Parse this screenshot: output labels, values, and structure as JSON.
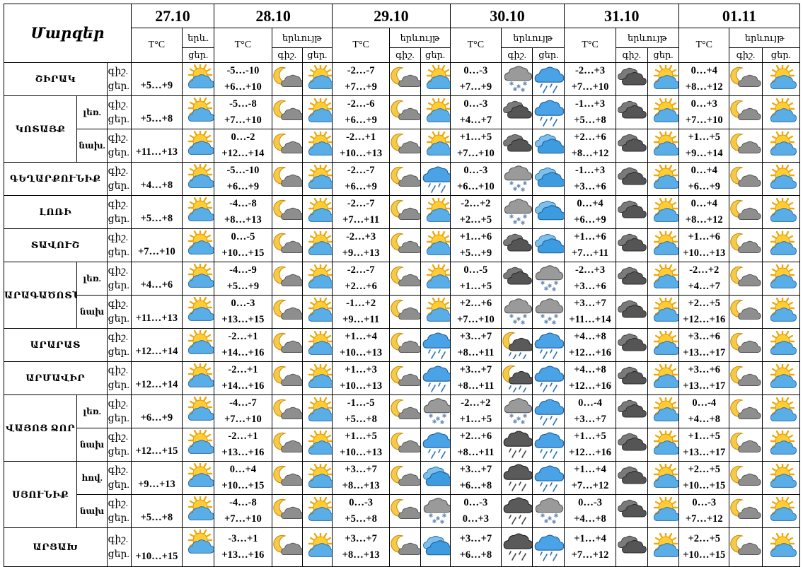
{
  "header": {
    "title": "Մարզեր",
    "temp_label": "T°C",
    "phen_label": "երևույթ",
    "phen_label_short": "երև.",
    "night_label": "գիշ.",
    "day_label": "ցեր."
  },
  "dates": [
    "27.10",
    "28.10",
    "29.10",
    "30.10",
    "31.10",
    "01.11"
  ],
  "regions": [
    {
      "name": "ՇԻՐԱԿ",
      "part": "",
      "span": 1,
      "temps": [
        {
          "n": "",
          "d": "+5…+9"
        },
        {
          "n": "-5…-10",
          "d": "+6…+10"
        },
        {
          "n": "-2…-7",
          "d": "+7…+9"
        },
        {
          "n": "0…-3",
          "d": "+7…+9"
        },
        {
          "n": "-2…+3",
          "d": "+7…+10"
        },
        {
          "n": "0…+4",
          "d": "+8…+12"
        }
      ],
      "icons": [
        "sun-cloud",
        "moon-cloud",
        "sun-cloud",
        "moon-cloud",
        "sun-cloud",
        "snow-cloud",
        "rain-cloud",
        "dark-cloud",
        "sun-cloud",
        "moon-cloud",
        "sun-cloud"
      ]
    },
    {
      "name": "ԿՈՏԱՅՔ",
      "part": "լեռ.",
      "span": 2,
      "temps": [
        {
          "n": "",
          "d": "+5…+8"
        },
        {
          "n": "-5…-8",
          "d": "+7…+10"
        },
        {
          "n": "-2…-6",
          "d": "+6…+9"
        },
        {
          "n": "0…-3",
          "d": "+4…+7"
        },
        {
          "n": "-1…+3",
          "d": "+5…+8"
        },
        {
          "n": "0…+3",
          "d": "+7…+10"
        }
      ],
      "icons": [
        "sun-cloud",
        "moon-cloud",
        "sun-cloud",
        "moon-cloud",
        "sun-cloud",
        "dark-cloud",
        "rain-cloud",
        "dark-cloud",
        "sun-cloud",
        "moon-cloud",
        "sun-cloud"
      ]
    },
    {
      "name": "",
      "part": "նախ.",
      "span": 0,
      "temps": [
        {
          "n": "",
          "d": "+11…+13"
        },
        {
          "n": "0…-2",
          "d": "+12…+14"
        },
        {
          "n": "-2…+1",
          "d": "+10…+13"
        },
        {
          "n": "+1…+5",
          "d": "+7…+10"
        },
        {
          "n": "+2…+6",
          "d": "+8…+12"
        },
        {
          "n": "+1…+5",
          "d": "+9…+14"
        }
      ],
      "icons": [
        "sun-cloud",
        "moon-cloud",
        "sun-cloud",
        "moon-cloud",
        "sun-cloud",
        "dark-cloud",
        "blue-cloud",
        "dark-cloud",
        "sun-cloud",
        "moon-cloud",
        "sun-cloud"
      ]
    },
    {
      "name": "ԳԵՂԱՐՔՈՒՆԻՔ",
      "part": "",
      "span": 1,
      "temps": [
        {
          "n": "",
          "d": "+4…+8"
        },
        {
          "n": "-5…-10",
          "d": "+6…+9"
        },
        {
          "n": "-2…-7",
          "d": "+6…+9"
        },
        {
          "n": "0…-3",
          "d": "+6…+10"
        },
        {
          "n": "-1…+3",
          "d": "+3…+6"
        },
        {
          "n": "0…+4",
          "d": "+6…+9"
        }
      ],
      "icons": [
        "sun-cloud",
        "moon-cloud",
        "sun-cloud",
        "moon-cloud",
        "rain-cloud",
        "snow-cloud",
        "blue-cloud",
        "dark-cloud",
        "sun-cloud",
        "moon-cloud",
        "sun-cloud"
      ]
    },
    {
      "name": "ԼՈՌԻ",
      "part": "",
      "span": 1,
      "temps": [
        {
          "n": "",
          "d": "+5…+8"
        },
        {
          "n": "-4…-8",
          "d": "+8…+13"
        },
        {
          "n": "-2…-7",
          "d": "+7…+11"
        },
        {
          "n": "-2…+2",
          "d": "+2…+5"
        },
        {
          "n": "0…+4",
          "d": "+6…+9"
        },
        {
          "n": "0…+4",
          "d": "+8…+12"
        }
      ],
      "icons": [
        "sun-cloud",
        "moon-cloud",
        "sun-cloud",
        "moon-cloud",
        "sun-cloud",
        "snow-cloud",
        "blue-cloud",
        "dark-cloud",
        "sun-cloud",
        "moon-cloud",
        "sun-cloud"
      ]
    },
    {
      "name": "ՏԱՎՈՒՇ",
      "part": "",
      "span": 1,
      "temps": [
        {
          "n": "",
          "d": "+7…+10"
        },
        {
          "n": "0…-5",
          "d": "+10…+15"
        },
        {
          "n": "-2…+3",
          "d": "+9…+13"
        },
        {
          "n": "+1…+6",
          "d": "+5…+9"
        },
        {
          "n": "+1…+6",
          "d": "+7…+11"
        },
        {
          "n": "+1…+6",
          "d": "+10…+13"
        }
      ],
      "icons": [
        "sun-cloud",
        "moon-cloud",
        "sun-cloud",
        "moon-cloud",
        "sun-cloud",
        "dark-cloud",
        "blue-cloud",
        "dark-cloud",
        "sun-cloud",
        "moon-cloud",
        "sun-cloud"
      ]
    },
    {
      "name": "ԱՐԱԳԱԾՈՏՆ",
      "part": "լեռ.",
      "span": 2,
      "temps": [
        {
          "n": "",
          "d": "+4…+6"
        },
        {
          "n": "-4…-9",
          "d": "+5…+9"
        },
        {
          "n": "-2…-7",
          "d": "+2…+6"
        },
        {
          "n": "0…-5",
          "d": "+1…+5"
        },
        {
          "n": "-2…+3",
          "d": "+3…+6"
        },
        {
          "n": "-2…+2",
          "d": "+4…+7"
        }
      ],
      "icons": [
        "sun-cloud",
        "moon-cloud",
        "sun-cloud",
        "moon-cloud",
        "sun-cloud",
        "dark-cloud",
        "snow-cloud",
        "dark-cloud",
        "sun-cloud",
        "moon-cloud",
        "sun-cloud"
      ]
    },
    {
      "name": "",
      "part": "նախ",
      "span": 0,
      "temps": [
        {
          "n": "",
          "d": "+11…+13"
        },
        {
          "n": "0…-3",
          "d": "+13…+15"
        },
        {
          "n": "-1…+2",
          "d": "+9…+11"
        },
        {
          "n": "+2…+6",
          "d": "+7…+10"
        },
        {
          "n": "+3…+7",
          "d": "+11…+14"
        },
        {
          "n": "+2…+5",
          "d": "+12…+16"
        }
      ],
      "icons": [
        "sun-cloud",
        "moon-cloud",
        "sun-cloud",
        "moon-cloud",
        "sun-cloud",
        "snow-cloud",
        "snow-cloud",
        "dark-cloud",
        "sun-cloud",
        "moon-cloud",
        "sun-cloud"
      ]
    },
    {
      "name": "ԱՐԱՐԱՏ",
      "part": "",
      "span": 1,
      "temps": [
        {
          "n": "",
          "d": "+12…+14"
        },
        {
          "n": "-2…+1",
          "d": "+14…+16"
        },
        {
          "n": "+1…+4",
          "d": "+10…+13"
        },
        {
          "n": "+3…+7",
          "d": "+8…+11"
        },
        {
          "n": "+4…+8",
          "d": "+12…+16"
        },
        {
          "n": "+3…+6",
          "d": "+13…+17"
        }
      ],
      "icons": [
        "sun-cloud",
        "moon-cloud",
        "sun-cloud",
        "moon-cloud",
        "rain-cloud",
        "moon-rain",
        "rain-cloud",
        "dark-cloud",
        "sun-cloud",
        "moon-cloud",
        "sun-cloud"
      ]
    },
    {
      "name": "ԱՐՄԱՎԻՐ",
      "part": "",
      "span": 1,
      "temps": [
        {
          "n": "",
          "d": "+12…+14"
        },
        {
          "n": "-2…+1",
          "d": "+14…+16"
        },
        {
          "n": "+1…+3",
          "d": "+10…+13"
        },
        {
          "n": "+3…+7",
          "d": "+8…+11"
        },
        {
          "n": "+4…+8",
          "d": "+12…+16"
        },
        {
          "n": "+3…+6",
          "d": "+13…+17"
        }
      ],
      "icons": [
        "sun-cloud",
        "moon-cloud",
        "sun-cloud",
        "moon-cloud",
        "rain-cloud",
        "moon-rain",
        "rain-cloud",
        "dark-cloud",
        "sun-cloud",
        "moon-cloud",
        "sun-cloud"
      ]
    },
    {
      "name": "ՎԱՅՈՑ ՁՈՐ",
      "part": "լեռ.",
      "span": 2,
      "temps": [
        {
          "n": "",
          "d": "+6…+9"
        },
        {
          "n": "-4…-7",
          "d": "+7…+10"
        },
        {
          "n": "-1…-5",
          "d": "+5…+8"
        },
        {
          "n": "-2…+2",
          "d": "+1…+5"
        },
        {
          "n": "0…-4",
          "d": "+3…+7"
        },
        {
          "n": "0…-4",
          "d": "+4…+8"
        }
      ],
      "icons": [
        "sun-cloud",
        "moon-cloud",
        "sun-cloud",
        "moon-cloud",
        "snow-cloud",
        "snow-cloud",
        "rain-cloud",
        "dark-cloud",
        "sun-cloud",
        "moon-cloud",
        "sun-cloud"
      ]
    },
    {
      "name": "",
      "part": "նախ",
      "span": 0,
      "temps": [
        {
          "n": "",
          "d": "+12…+15"
        },
        {
          "n": "-2…+1",
          "d": "+13…+16"
        },
        {
          "n": "+1…+5",
          "d": "+10…+13"
        },
        {
          "n": "+2…+6",
          "d": "+8…+11"
        },
        {
          "n": "+1…+5",
          "d": "+12…+16"
        },
        {
          "n": "+1…+5",
          "d": "+13…+17"
        }
      ],
      "icons": [
        "sun-cloud",
        "moon-cloud",
        "sun-cloud",
        "moon-cloud",
        "rain-cloud",
        "dark-rain",
        "rain-cloud",
        "dark-cloud",
        "sun-cloud",
        "moon-cloud",
        "sun-cloud"
      ]
    },
    {
      "name": "ՍՅՈՒՆԻՔ",
      "part": "հով.",
      "span": 2,
      "temps": [
        {
          "n": "",
          "d": "+9…+13"
        },
        {
          "n": "0…+4",
          "d": "+10…+15"
        },
        {
          "n": "+3…+7",
          "d": "+8…+13"
        },
        {
          "n": "+3…+7",
          "d": "+6…+8"
        },
        {
          "n": "+1…+4",
          "d": "+7…+12"
        },
        {
          "n": "+2…+5",
          "d": "+10…+15"
        }
      ],
      "icons": [
        "sun-cloud",
        "moon-cloud",
        "sun-cloud",
        "moon-cloud",
        "blue-cloud",
        "dark-rain",
        "rain-cloud",
        "dark-cloud",
        "sun-cloud",
        "moon-cloud",
        "sun-cloud"
      ]
    },
    {
      "name": "",
      "part": "նախ",
      "span": 0,
      "temps": [
        {
          "n": "",
          "d": "+5…+8"
        },
        {
          "n": "-4…-8",
          "d": "+7…+10"
        },
        {
          "n": "0…-3",
          "d": "+5…+8"
        },
        {
          "n": "0…-3",
          "d": "0…+3"
        },
        {
          "n": "0…-3",
          "d": "+4…+8"
        },
        {
          "n": "0…-3",
          "d": "+7…+12"
        }
      ],
      "icons": [
        "sun-cloud",
        "moon-cloud",
        "sun-cloud",
        "moon-cloud",
        "snow-cloud",
        "dark-rain",
        "snow-cloud",
        "dark-cloud",
        "sun-cloud",
        "moon-cloud",
        "sun-cloud"
      ]
    },
    {
      "name": "ԱՐՑԱԽ",
      "part": "",
      "span": 1,
      "temps": [
        {
          "n": "",
          "d": "+10…+15"
        },
        {
          "n": "-3…+1",
          "d": "+13…+16"
        },
        {
          "n": "+3…+7",
          "d": "+8…+13"
        },
        {
          "n": "+3…+7",
          "d": "+6…+8"
        },
        {
          "n": "+1…+4",
          "d": "+7…+12"
        },
        {
          "n": "+2…+5",
          "d": "+10…+15"
        }
      ],
      "icons": [
        "sun-cloud",
        "moon-cloud",
        "sun-cloud",
        "moon-cloud",
        "blue-cloud",
        "dark-rain",
        "rain-cloud",
        "dark-cloud",
        "sun-cloud",
        "moon-cloud",
        "sun-cloud"
      ]
    }
  ]
}
